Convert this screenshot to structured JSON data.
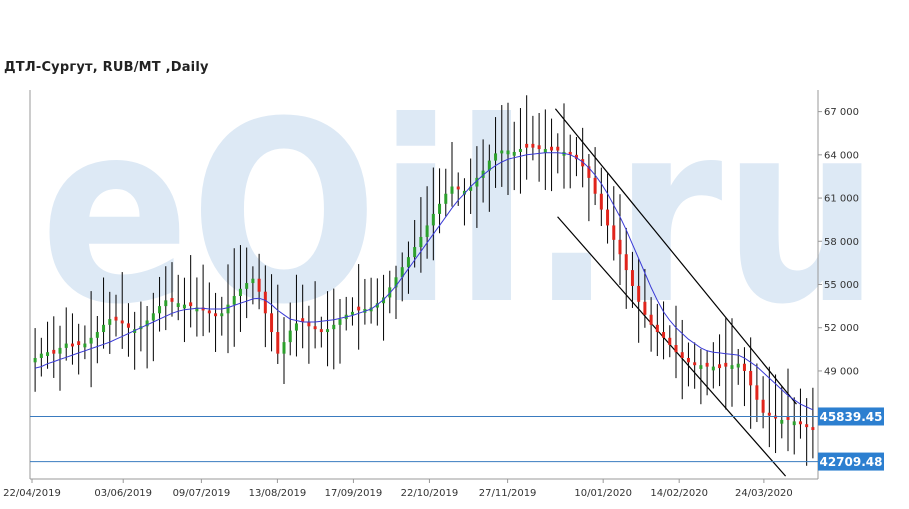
{
  "header": {
    "title": "ДТЛ-Сургут,  RUB/MT ,Daily"
  },
  "watermark": {
    "text": "eOil.ru"
  },
  "colors": {
    "up": "#2ca02c",
    "down": "#e0241b",
    "wick": "#000000",
    "ma": "#3a3ad6",
    "hline": "#3a7bbf",
    "badge": "#2c7fd0",
    "channel": "#000000",
    "axis": "#999999"
  },
  "chart_data": {
    "type": "candlestick",
    "title": "ДТЛ-Сургут,  RUB/MT ,Daily",
    "ylim": [
      41500,
      68500
    ],
    "y_ticks": [
      {
        "value": 49000,
        "label": "49 000"
      },
      {
        "value": 52000,
        "label": "52 000"
      },
      {
        "value": 55000,
        "label": "55 000"
      },
      {
        "value": 58000,
        "label": "58 000"
      },
      {
        "value": 61000,
        "label": "61 000"
      },
      {
        "value": 64000,
        "label": "64 000"
      },
      {
        "value": 67000,
        "label": "67 000"
      }
    ],
    "x_ticks": [
      "22/04/2019",
      "03/06/2019",
      "09/07/2019",
      "13/08/2019",
      "17/09/2019",
      "22/10/2019",
      "27/11/2019",
      "10/01/2020",
      "14/02/2020",
      "24/03/2020"
    ],
    "series": [
      {
        "name": "close",
        "type": "candlestick",
        "values": [
          49900,
          50200,
          50300,
          50200,
          50600,
          50900,
          50700,
          50800,
          50900,
          51300,
          51700,
          52200,
          52600,
          52500,
          52300,
          52000,
          51900,
          52100,
          52500,
          53000,
          53500,
          53900,
          53800,
          53700,
          53600,
          53500,
          53400,
          53200,
          53000,
          52800,
          53000,
          53600,
          54200,
          54700,
          55100,
          55400,
          54500,
          53000,
          51700,
          50200,
          51000,
          51800,
          52300,
          52400,
          52100,
          51900,
          51700,
          51900,
          52200,
          52600,
          52900,
          53100,
          53200,
          53300,
          53400,
          53700,
          54100,
          54800,
          55500,
          56200,
          56900,
          57600,
          58300,
          59100,
          59900,
          60600,
          61300,
          61800,
          61600,
          61500,
          61800,
          62400,
          62900,
          63600,
          64100,
          64300,
          64300,
          64200,
          64400,
          64500,
          64500,
          64400,
          64400,
          64300,
          64300,
          64200,
          64000,
          63700,
          63200,
          62400,
          61300,
          60200,
          59100,
          58100,
          57100,
          56000,
          54900,
          53800,
          52900,
          52200,
          51700,
          51300,
          50800,
          50300,
          49900,
          49600,
          49400,
          49400,
          49300,
          49300,
          49200,
          49300,
          49400,
          49500,
          49000,
          48000,
          47000,
          46100,
          45900,
          45700,
          45600,
          45600,
          45500,
          45300,
          45100,
          44900
        ]
      },
      {
        "name": "moving_average",
        "type": "line",
        "values": [
          49200,
          49300,
          49500,
          49650,
          49800,
          49950,
          50100,
          50250,
          50400,
          50550,
          50700,
          50850,
          51000,
          51200,
          51400,
          51600,
          51800,
          52000,
          52200,
          52400,
          52600,
          52800,
          53000,
          53150,
          53250,
          53300,
          53350,
          53350,
          53300,
          53300,
          53300,
          53400,
          53550,
          53700,
          53850,
          54000,
          54050,
          53900,
          53600,
          53200,
          52900,
          52600,
          52500,
          52400,
          52400,
          52400,
          52450,
          52500,
          52550,
          52650,
          52750,
          52850,
          53000,
          53150,
          53300,
          53600,
          53950,
          54400,
          54900,
          55500,
          56100,
          56700,
          57300,
          57900,
          58500,
          59100,
          59700,
          60300,
          60850,
          61300,
          61800,
          62200,
          62600,
          62950,
          63250,
          63500,
          63700,
          63800,
          63900,
          64000,
          64050,
          64100,
          64150,
          64150,
          64150,
          64100,
          64000,
          63800,
          63500,
          63100,
          62600,
          62000,
          61300,
          60500,
          59700,
          58800,
          57800,
          56800,
          55800,
          54800,
          53900,
          53100,
          52500,
          52000,
          51600,
          51200,
          50900,
          50600,
          50400,
          50300,
          50250,
          50200,
          50150,
          50100,
          49900,
          49600,
          49300,
          48900,
          48500,
          48100,
          47700,
          47300,
          47000,
          46700,
          46500,
          46300
        ]
      }
    ],
    "channel": [
      {
        "start": [
          "19/12/2019",
          67200
        ],
        "end": [
          "08/04/2020",
          46700
        ]
      },
      {
        "start": [
          "20/12/2019",
          59700
        ],
        "end": [
          "03/04/2020",
          41700
        ]
      }
    ],
    "horizontal_levels": [
      {
        "value": 45839.45,
        "label": "45839.45"
      },
      {
        "value": 42709.48,
        "label": "42709.48"
      }
    ],
    "legend": "none",
    "grid": false
  }
}
